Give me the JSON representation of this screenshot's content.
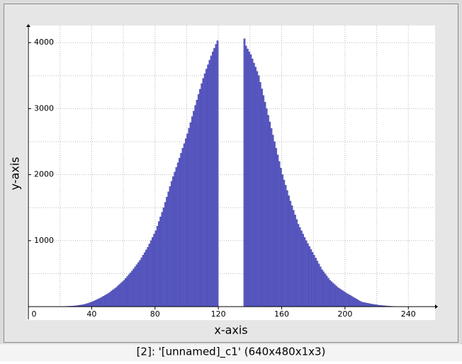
{
  "window": {
    "caption": "[2]: '[unnamed]_c1' (640x480x1x3)"
  },
  "chart_data": {
    "type": "histogram",
    "xlabel": "x-axis",
    "ylabel": "y-axis",
    "color": "#5c5cc6",
    "bins": [
      22,
      23,
      24,
      25,
      26,
      27,
      28,
      29,
      30,
      31,
      32,
      33,
      34,
      35,
      36,
      37,
      38,
      39,
      40,
      41,
      42,
      43,
      44,
      45,
      46,
      47,
      48,
      49,
      50,
      51,
      52,
      53,
      54,
      55,
      56,
      57,
      58,
      59,
      60,
      61,
      62,
      63,
      64,
      65,
      66,
      67,
      68,
      69,
      70,
      71,
      72,
      73,
      74,
      75,
      76,
      77,
      78,
      79,
      80,
      81,
      82,
      83,
      84,
      85,
      86,
      87,
      88,
      89,
      90,
      91,
      92,
      93,
      94,
      95,
      96,
      97,
      98,
      99,
      100,
      101,
      102,
      103,
      104,
      105,
      106,
      107,
      108,
      109,
      110,
      111,
      112,
      113,
      114,
      115,
      116,
      117,
      118,
      119,
      120,
      121,
      122,
      123,
      124,
      125,
      126,
      127,
      128,
      129,
      130,
      131,
      132,
      133,
      134,
      135,
      136,
      137,
      138,
      139,
      140,
      141,
      142,
      143,
      144,
      145,
      146,
      147,
      148,
      149,
      150,
      151,
      152,
      153,
      154,
      155,
      156,
      157,
      158,
      159,
      160,
      161,
      162,
      163,
      164,
      165,
      166,
      167,
      168,
      169,
      170,
      171,
      172,
      173,
      174,
      175,
      176,
      177,
      178,
      179,
      180,
      181,
      182,
      183,
      184,
      185,
      186,
      187,
      188,
      189,
      190,
      191,
      192,
      193,
      194,
      195,
      196,
      197,
      198,
      199,
      200,
      201,
      202,
      203,
      204,
      205,
      206,
      207,
      208,
      209,
      210,
      211,
      212,
      213,
      214,
      215,
      216,
      217,
      218,
      219,
      220,
      221,
      222,
      223,
      224,
      225,
      226,
      227,
      228,
      229,
      230,
      231,
      232
    ],
    "values": [
      3,
      4,
      5,
      6,
      7,
      9,
      10,
      12,
      15,
      18,
      22,
      26,
      30,
      35,
      42,
      49,
      57,
      66,
      75,
      86,
      97,
      108,
      119,
      130,
      144,
      158,
      172,
      186,
      200,
      218,
      236,
      254,
      272,
      290,
      312,
      334,
      356,
      378,
      400,
      428,
      456,
      484,
      512,
      540,
      572,
      604,
      636,
      668,
      700,
      740,
      780,
      820,
      860,
      900,
      950,
      1000,
      1050,
      1100,
      1150,
      1220,
      1290,
      1360,
      1430,
      1500,
      1580,
      1660,
      1740,
      1820,
      1900,
      1970,
      2040,
      2110,
      2180,
      2250,
      2325,
      2400,
      2470,
      2545,
      2620,
      2705,
      2790,
      2880,
      2965,
      3050,
      3130,
      3215,
      3295,
      3380,
      3460,
      3530,
      3600,
      3665,
      3735,
      3800,
      3860,
      3915,
      3975,
      4030,
      0,
      0,
      0,
      0,
      0,
      0,
      0,
      0,
      0,
      0,
      0,
      0,
      0,
      0,
      0,
      0,
      4060,
      3950,
      3905,
      3860,
      3820,
      3755,
      3690,
      3630,
      3565,
      3500,
      3400,
      3300,
      3200,
      3100,
      3000,
      2900,
      2800,
      2700,
      2600,
      2500,
      2400,
      2300,
      2200,
      2100,
      2000,
      1920,
      1840,
      1760,
      1680,
      1600,
      1530,
      1460,
      1390,
      1320,
      1250,
      1200,
      1150,
      1100,
      1050,
      1000,
      956,
      912,
      868,
      824,
      780,
      736,
      692,
      648,
      604,
      560,
      528,
      496,
      464,
      432,
      400,
      378,
      356,
      334,
      312,
      290,
      274,
      258,
      242,
      226,
      210,
      196,
      182,
      168,
      154,
      140,
      126,
      112,
      98,
      84,
      70,
      65,
      60,
      55,
      50,
      45,
      41,
      37,
      33,
      29,
      25,
      22,
      20,
      17,
      15,
      12,
      10,
      8,
      7,
      5,
      4,
      3
    ],
    "xlim": [
      0,
      256
    ],
    "ylim": [
      0,
      4260
    ],
    "xticks": [
      0,
      40,
      80,
      120,
      160,
      200,
      240
    ],
    "yticks": [
      1000,
      2000,
      3000,
      4000
    ],
    "xminorticks": [
      20,
      60,
      100,
      140,
      180,
      220
    ],
    "yminorticks": [
      500,
      1500,
      2500,
      3500
    ],
    "grid": true
  }
}
